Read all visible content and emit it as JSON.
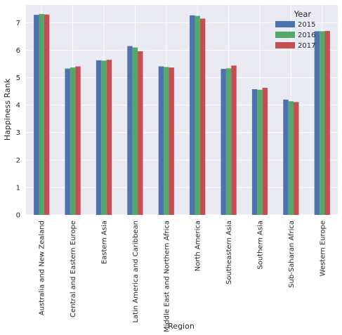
{
  "chart_data": {
    "type": "bar",
    "title": "",
    "xlabel": "Region",
    "ylabel": "Happiness Rank",
    "categories": [
      "Australia and New Zealand",
      "Central and Eastern Europe",
      "Eastern Asia",
      "Latin America and Caribbean",
      "Middle East and Northern Africa",
      "North America",
      "Southeastern Asia",
      "Southern Asia",
      "Sub-Saharan Africa",
      "Western Europe"
    ],
    "series": [
      {
        "name": "2015",
        "color": "#4c72b0",
        "values": [
          7.29,
          5.33,
          5.63,
          6.15,
          5.41,
          7.27,
          5.32,
          4.58,
          4.2,
          6.69
        ]
      },
      {
        "name": "2016",
        "color": "#55a868",
        "values": [
          7.32,
          5.37,
          5.62,
          6.1,
          5.39,
          7.25,
          5.34,
          4.56,
          4.14,
          6.69
        ]
      },
      {
        "name": "2017",
        "color": "#c44e52",
        "values": [
          7.3,
          5.41,
          5.65,
          5.96,
          5.37,
          7.15,
          5.44,
          4.63,
          4.11,
          6.7
        ]
      }
    ],
    "ylim": [
      0,
      7.65
    ],
    "yticks": [
      0,
      1,
      2,
      3,
      4,
      5,
      6,
      7
    ],
    "grid": true,
    "legend": {
      "title": "Year",
      "position": "top-right"
    },
    "background": "#eaeaf2"
  }
}
